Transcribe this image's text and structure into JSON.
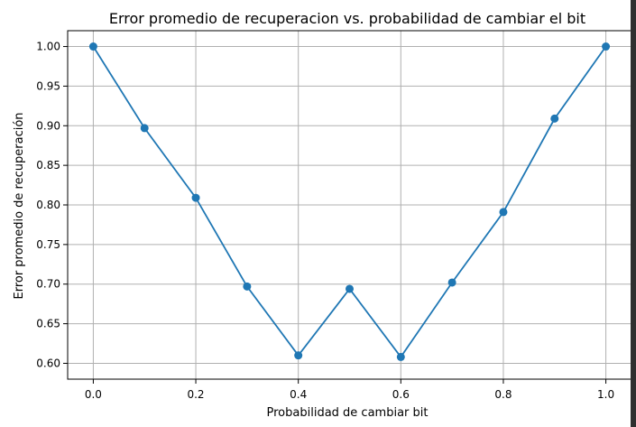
{
  "chart_data": {
    "type": "line",
    "title": "Error promedio de recuperacion vs. probabilidad de cambiar el bit",
    "xlabel": "Probabilidad de cambiar bit",
    "ylabel": "Error promedio de recuperación",
    "xlim": [
      -0.05,
      1.05
    ],
    "ylim": [
      0.58,
      1.02
    ],
    "x_ticks": [
      "0.0",
      "0.2",
      "0.4",
      "0.6",
      "0.8",
      "1.0"
    ],
    "y_ticks": [
      "0.60",
      "0.65",
      "0.70",
      "0.75",
      "0.80",
      "0.85",
      "0.90",
      "0.95",
      "1.00"
    ],
    "grid": true,
    "line_color": "#1f77b4",
    "series": [
      {
        "x": [
          0.0,
          0.1,
          0.2,
          0.3,
          0.4,
          0.5,
          0.6,
          0.7,
          0.8,
          0.9,
          1.0
        ],
        "values": [
          1.0,
          0.897,
          0.809,
          0.697,
          0.61,
          0.694,
          0.608,
          0.702,
          0.791,
          0.909,
          1.0
        ]
      }
    ]
  }
}
